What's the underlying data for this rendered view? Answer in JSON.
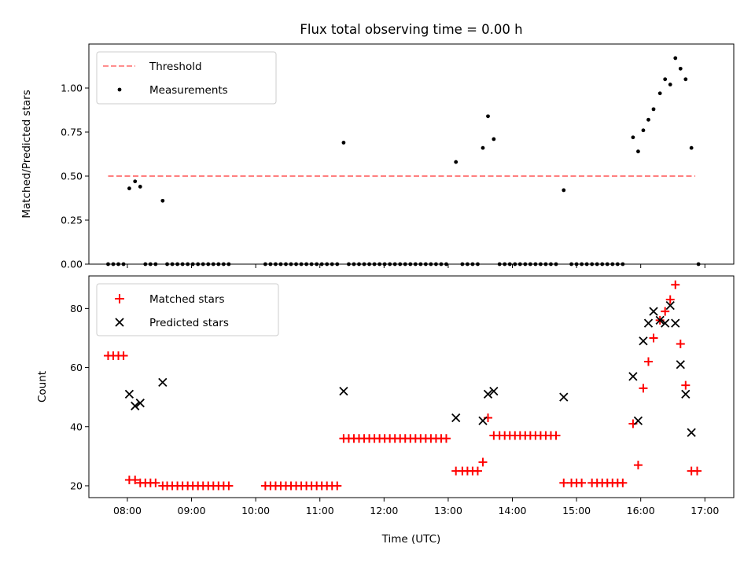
{
  "chart_data": [
    {
      "type": "scatter",
      "title": "Flux total observing time = 0.00 h",
      "xlabel": "",
      "ylabel": "Matched/Predicted stars",
      "xlim": [
        7.4,
        17.45
      ],
      "ylim": [
        0,
        1.25
      ],
      "yticks": [
        0,
        0.25,
        0.5,
        0.75,
        1.0
      ],
      "ytick_labels": [
        "0.00",
        "0.25",
        "0.50",
        "0.75",
        "1.00"
      ],
      "legend_position": "upper-left",
      "series": [
        {
          "name": "Threshold",
          "kind": "line",
          "style": "dashed",
          "color": "#ff7f7f",
          "x": [
            7.7,
            16.85
          ],
          "y": [
            0.5,
            0.5
          ]
        },
        {
          "name": "Measurements",
          "kind": "points",
          "color": "#000000",
          "points": [
            [
              7.7,
              0
            ],
            [
              7.78,
              0
            ],
            [
              7.86,
              0
            ],
            [
              7.94,
              0
            ],
            [
              8.03,
              0.43
            ],
            [
              8.12,
              0.47
            ],
            [
              8.2,
              0.44
            ],
            [
              8.28,
              0
            ],
            [
              8.36,
              0
            ],
            [
              8.44,
              0
            ],
            [
              8.55,
              0.36
            ],
            [
              8.62,
              0
            ],
            [
              8.7,
              0
            ],
            [
              8.78,
              0
            ],
            [
              8.86,
              0
            ],
            [
              8.94,
              0
            ],
            [
              9.02,
              0
            ],
            [
              9.1,
              0
            ],
            [
              9.18,
              0
            ],
            [
              9.26,
              0
            ],
            [
              9.34,
              0
            ],
            [
              9.42,
              0
            ],
            [
              9.5,
              0
            ],
            [
              9.58,
              0
            ],
            [
              10.15,
              0
            ],
            [
              10.23,
              0
            ],
            [
              10.31,
              0
            ],
            [
              10.39,
              0
            ],
            [
              10.47,
              0
            ],
            [
              10.55,
              0
            ],
            [
              10.63,
              0
            ],
            [
              10.71,
              0
            ],
            [
              10.79,
              0
            ],
            [
              10.87,
              0
            ],
            [
              10.95,
              0
            ],
            [
              11.03,
              0
            ],
            [
              11.11,
              0
            ],
            [
              11.19,
              0
            ],
            [
              11.27,
              0
            ],
            [
              11.37,
              0.69
            ],
            [
              11.45,
              0
            ],
            [
              11.53,
              0
            ],
            [
              11.61,
              0
            ],
            [
              11.69,
              0
            ],
            [
              11.77,
              0
            ],
            [
              11.85,
              0
            ],
            [
              11.93,
              0
            ],
            [
              12.01,
              0
            ],
            [
              12.09,
              0
            ],
            [
              12.17,
              0
            ],
            [
              12.25,
              0
            ],
            [
              12.33,
              0
            ],
            [
              12.41,
              0
            ],
            [
              12.49,
              0
            ],
            [
              12.57,
              0
            ],
            [
              12.65,
              0
            ],
            [
              12.73,
              0
            ],
            [
              12.81,
              0
            ],
            [
              12.89,
              0
            ],
            [
              12.97,
              0
            ],
            [
              13.12,
              0.58
            ],
            [
              13.22,
              0
            ],
            [
              13.3,
              0
            ],
            [
              13.38,
              0
            ],
            [
              13.46,
              0
            ],
            [
              13.54,
              0.66
            ],
            [
              13.62,
              0.84
            ],
            [
              13.71,
              0.71
            ],
            [
              13.8,
              0
            ],
            [
              13.88,
              0
            ],
            [
              13.96,
              0
            ],
            [
              14.04,
              0
            ],
            [
              14.12,
              0
            ],
            [
              14.2,
              0
            ],
            [
              14.28,
              0
            ],
            [
              14.36,
              0
            ],
            [
              14.44,
              0
            ],
            [
              14.52,
              0
            ],
            [
              14.6,
              0
            ],
            [
              14.68,
              0
            ],
            [
              14.8,
              0.42
            ],
            [
              14.92,
              0
            ],
            [
              15.0,
              0
            ],
            [
              15.08,
              0
            ],
            [
              15.16,
              0
            ],
            [
              15.24,
              0
            ],
            [
              15.32,
              0
            ],
            [
              15.4,
              0
            ],
            [
              15.48,
              0
            ],
            [
              15.56,
              0
            ],
            [
              15.64,
              0
            ],
            [
              15.72,
              0
            ],
            [
              15.88,
              0.72
            ],
            [
              15.96,
              0.64
            ],
            [
              16.04,
              0.76
            ],
            [
              16.12,
              0.82
            ],
            [
              16.2,
              0.88
            ],
            [
              16.3,
              0.97
            ],
            [
              16.38,
              1.05
            ],
            [
              16.46,
              1.02
            ],
            [
              16.54,
              1.17
            ],
            [
              16.62,
              1.11
            ],
            [
              16.7,
              1.05
            ],
            [
              16.79,
              0.66
            ],
            [
              16.9,
              0
            ]
          ]
        }
      ]
    },
    {
      "type": "scatter",
      "title": "",
      "xlabel": "Time (UTC)",
      "ylabel": "Count",
      "xlim": [
        7.4,
        17.45
      ],
      "ylim": [
        16,
        91
      ],
      "yticks": [
        20,
        40,
        60,
        80
      ],
      "ytick_labels": [
        "20",
        "40",
        "60",
        "80"
      ],
      "xticks": [
        8,
        9,
        10,
        11,
        12,
        13,
        14,
        15,
        16,
        17
      ],
      "xtick_labels": [
        "08:00",
        "09:00",
        "10:00",
        "11:00",
        "12:00",
        "13:00",
        "14:00",
        "15:00",
        "16:00",
        "17:00"
      ],
      "legend_position": "upper-left",
      "series": [
        {
          "name": "Matched stars",
          "kind": "plus",
          "color": "#ff0000",
          "points": [
            [
              7.7,
              64
            ],
            [
              7.78,
              64
            ],
            [
              7.86,
              64
            ],
            [
              7.94,
              64
            ],
            [
              8.03,
              22
            ],
            [
              8.12,
              22
            ],
            [
              8.2,
              21
            ],
            [
              8.28,
              21
            ],
            [
              8.36,
              21
            ],
            [
              8.44,
              21
            ],
            [
              8.55,
              20
            ],
            [
              8.62,
              20
            ],
            [
              8.7,
              20
            ],
            [
              8.78,
              20
            ],
            [
              8.86,
              20
            ],
            [
              8.94,
              20
            ],
            [
              9.02,
              20
            ],
            [
              9.1,
              20
            ],
            [
              9.18,
              20
            ],
            [
              9.26,
              20
            ],
            [
              9.34,
              20
            ],
            [
              9.42,
              20
            ],
            [
              9.5,
              20
            ],
            [
              9.58,
              20
            ],
            [
              10.15,
              20
            ],
            [
              10.23,
              20
            ],
            [
              10.31,
              20
            ],
            [
              10.39,
              20
            ],
            [
              10.47,
              20
            ],
            [
              10.55,
              20
            ],
            [
              10.63,
              20
            ],
            [
              10.71,
              20
            ],
            [
              10.79,
              20
            ],
            [
              10.87,
              20
            ],
            [
              10.95,
              20
            ],
            [
              11.03,
              20
            ],
            [
              11.11,
              20
            ],
            [
              11.19,
              20
            ],
            [
              11.27,
              20
            ],
            [
              11.37,
              36
            ],
            [
              11.45,
              36
            ],
            [
              11.53,
              36
            ],
            [
              11.61,
              36
            ],
            [
              11.69,
              36
            ],
            [
              11.77,
              36
            ],
            [
              11.85,
              36
            ],
            [
              11.93,
              36
            ],
            [
              12.01,
              36
            ],
            [
              12.09,
              36
            ],
            [
              12.17,
              36
            ],
            [
              12.25,
              36
            ],
            [
              12.33,
              36
            ],
            [
              12.41,
              36
            ],
            [
              12.49,
              36
            ],
            [
              12.57,
              36
            ],
            [
              12.65,
              36
            ],
            [
              12.73,
              36
            ],
            [
              12.81,
              36
            ],
            [
              12.89,
              36
            ],
            [
              12.97,
              36
            ],
            [
              13.12,
              25
            ],
            [
              13.22,
              25
            ],
            [
              13.3,
              25
            ],
            [
              13.38,
              25
            ],
            [
              13.46,
              25
            ],
            [
              13.54,
              28
            ],
            [
              13.62,
              43
            ],
            [
              13.71,
              37
            ],
            [
              13.8,
              37
            ],
            [
              13.88,
              37
            ],
            [
              13.96,
              37
            ],
            [
              14.04,
              37
            ],
            [
              14.12,
              37
            ],
            [
              14.2,
              37
            ],
            [
              14.28,
              37
            ],
            [
              14.36,
              37
            ],
            [
              14.44,
              37
            ],
            [
              14.52,
              37
            ],
            [
              14.6,
              37
            ],
            [
              14.68,
              37
            ],
            [
              14.8,
              21
            ],
            [
              14.92,
              21
            ],
            [
              15.0,
              21
            ],
            [
              15.08,
              21
            ],
            [
              15.24,
              21
            ],
            [
              15.32,
              21
            ],
            [
              15.4,
              21
            ],
            [
              15.48,
              21
            ],
            [
              15.56,
              21
            ],
            [
              15.64,
              21
            ],
            [
              15.72,
              21
            ],
            [
              15.88,
              41
            ],
            [
              15.96,
              27
            ],
            [
              16.04,
              53
            ],
            [
              16.12,
              62
            ],
            [
              16.2,
              70
            ],
            [
              16.3,
              76
            ],
            [
              16.38,
              79
            ],
            [
              16.46,
              83
            ],
            [
              16.54,
              88
            ],
            [
              16.62,
              68
            ],
            [
              16.7,
              54
            ],
            [
              16.79,
              25
            ],
            [
              16.88,
              25
            ]
          ]
        },
        {
          "name": "Predicted stars",
          "kind": "x",
          "color": "#000000",
          "points": [
            [
              8.03,
              51
            ],
            [
              8.12,
              47
            ],
            [
              8.2,
              48
            ],
            [
              8.55,
              55
            ],
            [
              11.37,
              52
            ],
            [
              13.12,
              43
            ],
            [
              13.54,
              42
            ],
            [
              13.62,
              51
            ],
            [
              13.71,
              52
            ],
            [
              14.8,
              50
            ],
            [
              15.88,
              57
            ],
            [
              15.96,
              42
            ],
            [
              16.04,
              69
            ],
            [
              16.12,
              75
            ],
            [
              16.2,
              79
            ],
            [
              16.3,
              76
            ],
            [
              16.38,
              75
            ],
            [
              16.46,
              81
            ],
            [
              16.54,
              75
            ],
            [
              16.62,
              61
            ],
            [
              16.7,
              51
            ],
            [
              16.79,
              38
            ]
          ]
        }
      ]
    }
  ]
}
